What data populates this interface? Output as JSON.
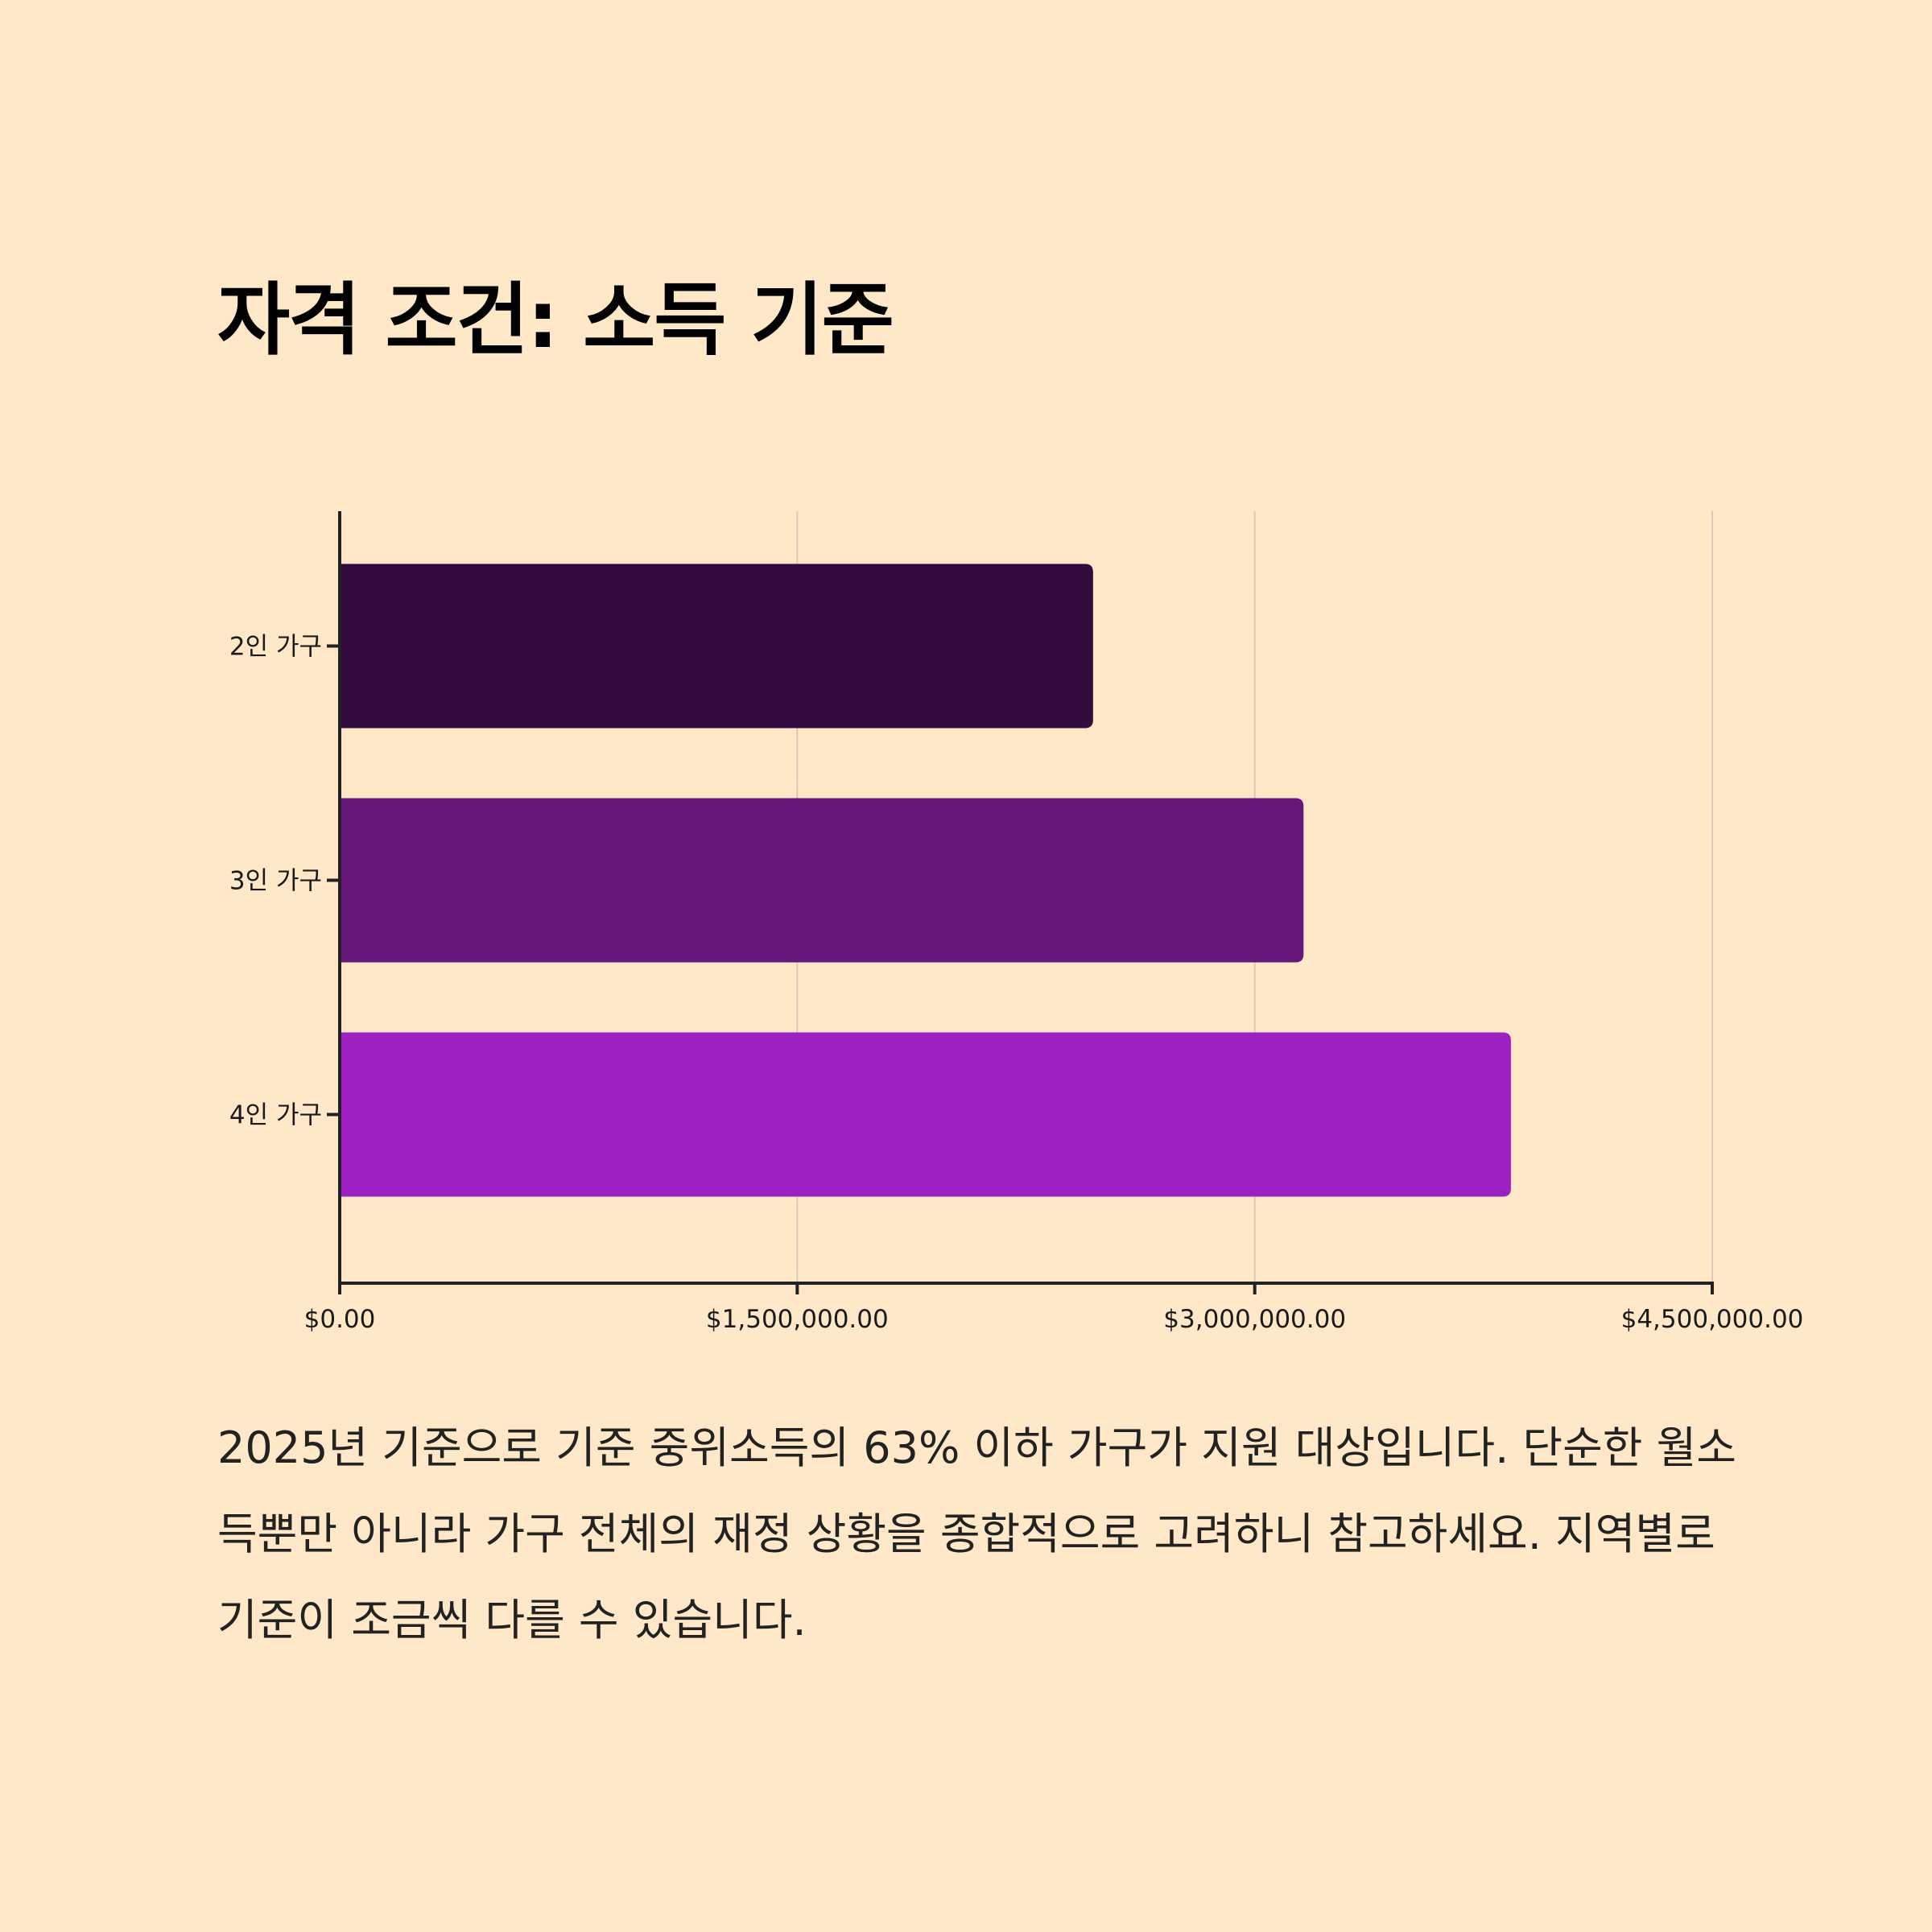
{
  "page": {
    "title": "자격 조건: 소득 기준",
    "description": "2025년 기준으로 기준 중위소득의 63% 이하 가구가 지원 대상입니다. 단순한 월소득뿐만 아니라 가구 전체의 재정 상황을 종합적으로 고려하니 참고하세요. 지역별로 기준이 조금씩 다를 수 있습니다."
  },
  "colors": {
    "background": "#FFE8C8",
    "gridline": "#DCC8B4",
    "axis": "#222222"
  },
  "chart_data": {
    "type": "bar",
    "orientation": "horizontal",
    "title": "",
    "xlabel": "",
    "ylabel": "",
    "categories": [
      "2인 가구",
      "3인 가구",
      "4인 가구"
    ],
    "values": [
      2470000,
      3160000,
      3840000
    ],
    "bar_colors": [
      "#330B3E",
      "#66177A",
      "#9D20C2"
    ],
    "xlim": [
      0,
      4500000
    ],
    "xticks": [
      0,
      1500000,
      3000000,
      4500000
    ],
    "xtick_labels": [
      "$0.00",
      "$1,500,000.00",
      "$3,000,000.00",
      "$4,500,000.00"
    ],
    "grid": "vertical",
    "legend": "none"
  }
}
